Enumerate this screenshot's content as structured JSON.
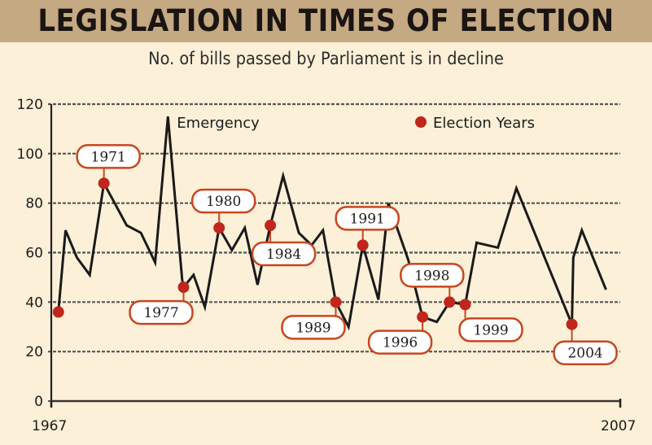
{
  "header": {
    "title": "LEGISLATION IN TIMES OF ELECTION",
    "subtitle": "No. of bills passed by Parliament is in decline"
  },
  "colors": {
    "header_band": "#c5a983",
    "background": "#fdf0d8",
    "line": "#1a1a1a",
    "election_dot": "#c0261c",
    "callout_border": "#c8461f",
    "callout_fill": "#ffffff",
    "grid": "#555555"
  },
  "chart_data": {
    "type": "line",
    "title": "LEGISLATION IN TIMES OF ELECTION",
    "subtitle": "No. of bills passed by Parliament is in decline",
    "xlabel": "",
    "ylabel": "",
    "xlim": [
      1967,
      2007
    ],
    "ylim": [
      0,
      120
    ],
    "x_tick_labels": [
      "1967",
      "2007"
    ],
    "y_ticks": [
      0,
      20,
      40,
      60,
      80,
      100,
      120
    ],
    "y_tick_labels": [
      "0",
      "20",
      "40",
      "60",
      "80",
      "100",
      "120"
    ],
    "grid": true,
    "legend": {
      "placement": "top-right",
      "entries": [
        {
          "label": "Election Years",
          "marker": "red-dot"
        }
      ]
    },
    "annotations": [
      {
        "text": "Emergency",
        "x": 1975.2,
        "y": 115
      }
    ],
    "series": [
      {
        "name": "Bills passed",
        "points": [
          {
            "x": 1967.5,
            "y": 36
          },
          {
            "x": 1968.0,
            "y": 69
          },
          {
            "x": 1968.8,
            "y": 58
          },
          {
            "x": 1969.7,
            "y": 51
          },
          {
            "x": 1970.7,
            "y": 88
          },
          {
            "x": 1972.3,
            "y": 71
          },
          {
            "x": 1973.3,
            "y": 68
          },
          {
            "x": 1974.3,
            "y": 56
          },
          {
            "x": 1975.2,
            "y": 115
          },
          {
            "x": 1976.2,
            "y": 49
          },
          {
            "x": 1976.3,
            "y": 46
          },
          {
            "x": 1977.0,
            "y": 51
          },
          {
            "x": 1977.8,
            "y": 38
          },
          {
            "x": 1978.8,
            "y": 70
          },
          {
            "x": 1979.7,
            "y": 61
          },
          {
            "x": 1980.6,
            "y": 70
          },
          {
            "x": 1981.5,
            "y": 47
          },
          {
            "x": 1982.4,
            "y": 71
          },
          {
            "x": 1983.3,
            "y": 91
          },
          {
            "x": 1984.4,
            "y": 68
          },
          {
            "x": 1985.3,
            "y": 63
          },
          {
            "x": 1986.1,
            "y": 69
          },
          {
            "x": 1987.0,
            "y": 40
          },
          {
            "x": 1987.9,
            "y": 30
          },
          {
            "x": 1988.9,
            "y": 63
          },
          {
            "x": 1990.0,
            "y": 41
          },
          {
            "x": 1990.7,
            "y": 80
          },
          {
            "x": 1992.1,
            "y": 57
          },
          {
            "x": 1993.1,
            "y": 34
          },
          {
            "x": 1994.1,
            "y": 32
          },
          {
            "x": 1995.0,
            "y": 40
          },
          {
            "x": 1996.1,
            "y": 39
          },
          {
            "x": 1996.9,
            "y": 64
          },
          {
            "x": 1998.4,
            "y": 62
          },
          {
            "x": 1999.7,
            "y": 86
          },
          {
            "x": 2003.6,
            "y": 31
          },
          {
            "x": 2003.7,
            "y": 58
          },
          {
            "x": 2004.3,
            "y": 69
          },
          {
            "x": 2006.0,
            "y": 45
          }
        ]
      }
    ],
    "election_years": [
      {
        "label": "1967",
        "x": 1967.5,
        "y": 36,
        "callout": false
      },
      {
        "label": "1971",
        "x": 1970.7,
        "y": 88,
        "callout": true,
        "callout_pos": "above"
      },
      {
        "label": "1977",
        "x": 1976.3,
        "y": 46,
        "callout": true,
        "callout_pos": "below-left"
      },
      {
        "label": "1980",
        "x": 1978.8,
        "y": 70,
        "callout": true,
        "callout_pos": "above"
      },
      {
        "label": "1984",
        "x": 1982.4,
        "y": 71,
        "callout": true,
        "callout_pos": "below"
      },
      {
        "label": "1989",
        "x": 1987.0,
        "y": 40,
        "callout": true,
        "callout_pos": "below-left"
      },
      {
        "label": "1991",
        "x": 1988.9,
        "y": 63,
        "callout": true,
        "callout_pos": "above"
      },
      {
        "label": "1996",
        "x": 1993.1,
        "y": 34,
        "callout": true,
        "callout_pos": "below-left"
      },
      {
        "label": "1998",
        "x": 1995.0,
        "y": 40,
        "callout": true,
        "callout_pos": "above-left"
      },
      {
        "label": "1999",
        "x": 1996.1,
        "y": 39,
        "callout": true,
        "callout_pos": "below-right"
      },
      {
        "label": "2004",
        "x": 2003.6,
        "y": 31,
        "callout": true,
        "callout_pos": "below"
      }
    ]
  }
}
